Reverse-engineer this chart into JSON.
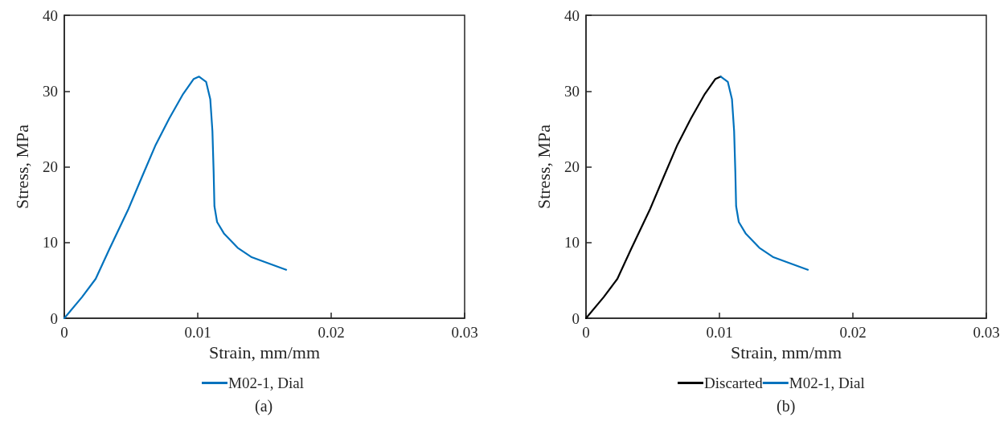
{
  "chart_data": [
    {
      "type": "line",
      "xlabel": "Strain, mm/mm",
      "ylabel": "Stress, MPa",
      "xlim": [
        0,
        0.03
      ],
      "xticks": [
        0,
        0.01,
        0.02,
        0.03
      ],
      "ylim": [
        0,
        40
      ],
      "yticks": [
        0,
        10,
        20,
        30,
        40
      ],
      "grid": false,
      "legend": "bottom",
      "marker": "none",
      "line_style": "solid",
      "annotations": [
        "(a)"
      ],
      "series": [
        {
          "name": "M02-1, Dial",
          "color": "#0072bd",
          "x": [
            0,
            0.00133,
            0.00235,
            0.00337,
            0.0048,
            0.00583,
            0.00685,
            0.00787,
            0.0089,
            0.0097,
            0.0101,
            0.01063,
            0.01094,
            0.0111,
            0.01119,
            0.01125,
            0.01145,
            0.01196,
            0.01299,
            0.014,
            0.01523,
            0.01663
          ],
          "values": [
            0,
            2.8,
            5.2,
            9.1,
            14.4,
            18.7,
            22.9,
            26.4,
            29.6,
            31.6,
            31.9,
            31.2,
            28.9,
            24.7,
            19.4,
            14.8,
            12.7,
            11.2,
            9.3,
            8.1,
            7.3,
            6.4
          ]
        }
      ]
    },
    {
      "type": "line",
      "xlabel": "Strain, mm/mm",
      "ylabel": "Stress, MPa",
      "xlim": [
        0,
        0.03
      ],
      "xticks": [
        0,
        0.01,
        0.02,
        0.03
      ],
      "ylim": [
        0,
        40
      ],
      "yticks": [
        0,
        10,
        20,
        30,
        40
      ],
      "grid": false,
      "legend": "bottom",
      "marker": "none",
      "line_style": "solid",
      "annotations": [
        "(b)"
      ],
      "series": [
        {
          "name": "Discarted",
          "color": "#000000",
          "x": [
            0,
            0.00133,
            0.00235,
            0.00337,
            0.0048,
            0.00583,
            0.00685,
            0.00787,
            0.0089,
            0.0097,
            0.0101
          ],
          "values": [
            0,
            2.8,
            5.2,
            9.1,
            14.4,
            18.7,
            22.9,
            26.4,
            29.6,
            31.6,
            31.9
          ]
        },
        {
          "name": "M02-1, Dial",
          "color": "#0072bd",
          "x": [
            0.0101,
            0.01063,
            0.01094,
            0.0111,
            0.01119,
            0.01125,
            0.01145,
            0.01196,
            0.01299,
            0.014,
            0.01523,
            0.01663
          ],
          "values": [
            31.9,
            31.2,
            28.9,
            24.7,
            19.4,
            14.8,
            12.7,
            11.2,
            9.3,
            8.1,
            7.3,
            6.4
          ]
        }
      ]
    }
  ]
}
